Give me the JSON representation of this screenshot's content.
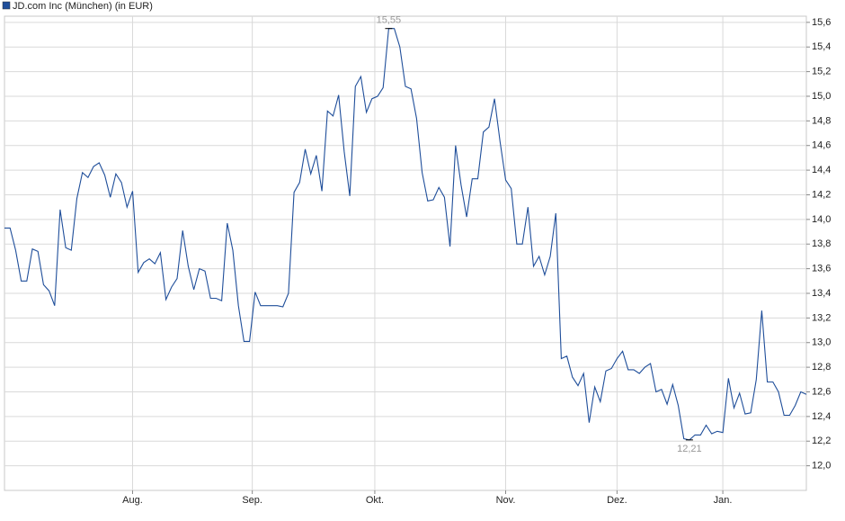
{
  "chart_data": {
    "type": "line",
    "series": [
      {
        "name": "JD.com Inc (München) (in EUR)",
        "color": "#1f4e9a",
        "values": [
          13.93,
          13.93,
          13.75,
          13.5,
          13.5,
          13.76,
          13.74,
          13.47,
          13.42,
          13.3,
          14.08,
          13.77,
          13.75,
          14.17,
          14.38,
          14.34,
          14.43,
          14.46,
          14.36,
          14.18,
          14.37,
          14.3,
          14.1,
          14.23,
          13.57,
          13.65,
          13.68,
          13.64,
          13.73,
          13.35,
          13.45,
          13.52,
          13.91,
          13.62,
          13.43,
          13.6,
          13.58,
          13.36,
          13.36,
          13.34,
          13.97,
          13.75,
          13.3,
          13.01,
          13.01,
          13.41,
          13.3,
          13.3,
          13.3,
          13.3,
          13.29,
          13.4,
          14.22,
          14.3,
          14.57,
          14.37,
          14.52,
          14.23,
          14.88,
          14.84,
          15.01,
          14.55,
          14.19,
          15.08,
          15.16,
          14.87,
          14.98,
          15.0,
          15.07,
          15.55,
          15.55,
          15.4,
          15.08,
          15.06,
          14.82,
          14.38,
          14.15,
          14.16,
          14.26,
          14.18,
          13.78,
          14.6,
          14.28,
          14.02,
          14.33,
          14.33,
          14.71,
          14.75,
          14.98,
          14.63,
          14.32,
          14.25,
          13.8,
          13.8,
          14.1,
          13.62,
          13.7,
          13.55,
          13.7,
          14.05,
          12.87,
          12.89,
          12.72,
          12.65,
          12.75,
          12.35,
          12.64,
          12.52,
          12.77,
          12.79,
          12.87,
          12.93,
          12.78,
          12.78,
          12.75,
          12.8,
          12.83,
          12.6,
          12.62,
          12.5,
          12.66,
          12.49,
          12.22,
          12.21,
          12.25,
          12.25,
          12.33,
          12.26,
          12.28,
          12.27,
          12.71,
          12.47,
          12.59,
          12.42,
          12.43,
          12.7,
          13.26,
          12.68,
          12.68,
          12.6,
          12.41,
          12.41,
          12.49,
          12.6,
          12.58
        ]
      }
    ],
    "xlim": [
      0,
      144
    ],
    "xticks": [
      {
        "value": 23,
        "label": "Aug."
      },
      {
        "value": 44.5,
        "label": "Sep."
      },
      {
        "value": 66.5,
        "label": "Okt."
      },
      {
        "value": 90,
        "label": "Nov."
      },
      {
        "value": 110,
        "label": "Dez."
      },
      {
        "value": 129,
        "label": "Jan."
      }
    ],
    "ylim": [
      11.8,
      15.65
    ],
    "yticks": [
      {
        "value": 12,
        "label": "12,0"
      },
      {
        "value": 12.2,
        "label": "12,2"
      },
      {
        "value": 12.4,
        "label": "12,4"
      },
      {
        "value": 12.6,
        "label": "12,6"
      },
      {
        "value": 12.8,
        "label": "12,8"
      },
      {
        "value": 13,
        "label": "13,0"
      },
      {
        "value": 13.2,
        "label": "13,2"
      },
      {
        "value": 13.4,
        "label": "13,4"
      },
      {
        "value": 13.6,
        "label": "13,6"
      },
      {
        "value": 13.8,
        "label": "13,8"
      },
      {
        "value": 14,
        "label": "14,0"
      },
      {
        "value": 14.2,
        "label": "14,2"
      },
      {
        "value": 14.4,
        "label": "14,4"
      },
      {
        "value": 14.6,
        "label": "14,6"
      },
      {
        "value": 14.8,
        "label": "14,8"
      },
      {
        "value": 15,
        "label": "15,0"
      },
      {
        "value": 15.2,
        "label": "15,2"
      },
      {
        "value": 15.4,
        "label": "15,4"
      },
      {
        "value": 15.6,
        "label": "15,6"
      }
    ],
    "grid": true,
    "annotations": [
      {
        "x": 69,
        "value": 15.55,
        "label": "15,55"
      },
      {
        "x": 123,
        "value": 12.21,
        "label": "12,21"
      }
    ]
  }
}
